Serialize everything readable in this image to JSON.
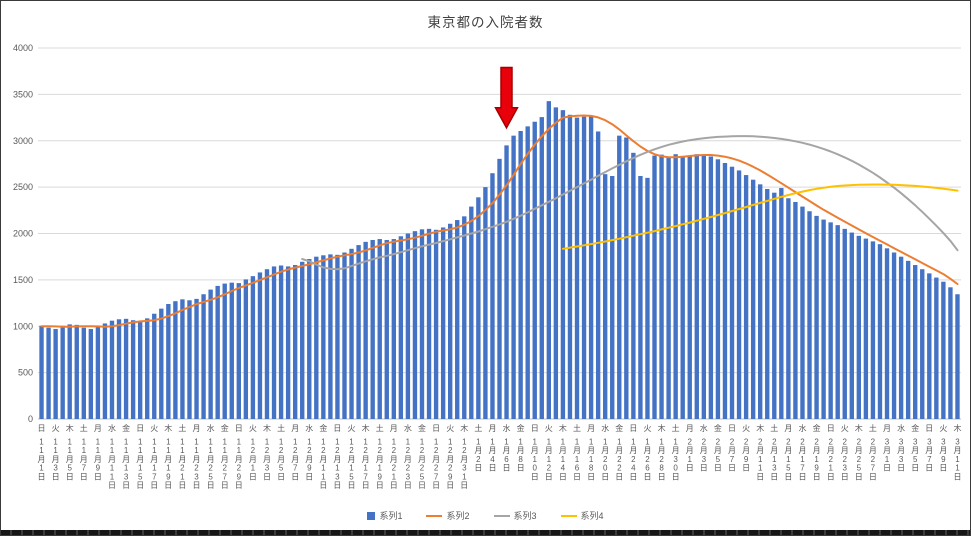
{
  "chart_data": {
    "type": "bar+line",
    "title": "東京都の入院者数",
    "grid": true,
    "legend_position": "bottom",
    "y_axis": {
      "min": 0,
      "max": 4000,
      "step": 500,
      "tick_labels": [
        "0",
        "500",
        "1000",
        "1500",
        "2000",
        "2500",
        "3000",
        "3500",
        "4000"
      ]
    },
    "x_axis": {
      "tick_every_days": 2,
      "ticks": [
        {
          "w": "日",
          "d": "11月1日"
        },
        {
          "w": "火",
          "d": "11月3日"
        },
        {
          "w": "木",
          "d": "11月5日"
        },
        {
          "w": "土",
          "d": "11月7日"
        },
        {
          "w": "月",
          "d": "11月9日"
        },
        {
          "w": "水",
          "d": "11月11日"
        },
        {
          "w": "金",
          "d": "11月13日"
        },
        {
          "w": "日",
          "d": "11月15日"
        },
        {
          "w": "火",
          "d": "11月17日"
        },
        {
          "w": "木",
          "d": "11月19日"
        },
        {
          "w": "土",
          "d": "11月21日"
        },
        {
          "w": "月",
          "d": "11月23日"
        },
        {
          "w": "水",
          "d": "11月25日"
        },
        {
          "w": "金",
          "d": "11月27日"
        },
        {
          "w": "日",
          "d": "11月29日"
        },
        {
          "w": "火",
          "d": "12月1日"
        },
        {
          "w": "木",
          "d": "12月3日"
        },
        {
          "w": "土",
          "d": "12月5日"
        },
        {
          "w": "月",
          "d": "12月7日"
        },
        {
          "w": "水",
          "d": "12月9日"
        },
        {
          "w": "金",
          "d": "12月11日"
        },
        {
          "w": "日",
          "d": "12月13日"
        },
        {
          "w": "火",
          "d": "12月15日"
        },
        {
          "w": "木",
          "d": "12月17日"
        },
        {
          "w": "土",
          "d": "12月19日"
        },
        {
          "w": "月",
          "d": "12月21日"
        },
        {
          "w": "水",
          "d": "12月23日"
        },
        {
          "w": "金",
          "d": "12月25日"
        },
        {
          "w": "日",
          "d": "12月27日"
        },
        {
          "w": "火",
          "d": "12月29日"
        },
        {
          "w": "木",
          "d": "12月31日"
        },
        {
          "w": "土",
          "d": "1月2日"
        },
        {
          "w": "月",
          "d": "1月4日"
        },
        {
          "w": "水",
          "d": "1月6日"
        },
        {
          "w": "金",
          "d": "1月8日"
        },
        {
          "w": "日",
          "d": "1月10日"
        },
        {
          "w": "火",
          "d": "1月12日"
        },
        {
          "w": "木",
          "d": "1月14日"
        },
        {
          "w": "土",
          "d": "1月16日"
        },
        {
          "w": "月",
          "d": "1月18日"
        },
        {
          "w": "水",
          "d": "1月20日"
        },
        {
          "w": "金",
          "d": "1月22日"
        },
        {
          "w": "日",
          "d": "1月24日"
        },
        {
          "w": "火",
          "d": "1月26日"
        },
        {
          "w": "木",
          "d": "1月28日"
        },
        {
          "w": "土",
          "d": "1月30日"
        },
        {
          "w": "月",
          "d": "2月1日"
        },
        {
          "w": "水",
          "d": "2月3日"
        },
        {
          "w": "金",
          "d": "2月5日"
        },
        {
          "w": "日",
          "d": "2月7日"
        },
        {
          "w": "火",
          "d": "2月9日"
        },
        {
          "w": "木",
          "d": "2月11日"
        },
        {
          "w": "土",
          "d": "2月13日"
        },
        {
          "w": "月",
          "d": "2月15日"
        },
        {
          "w": "水",
          "d": "2月17日"
        },
        {
          "w": "金",
          "d": "2月19日"
        },
        {
          "w": "日",
          "d": "2月21日"
        },
        {
          "w": "火",
          "d": "2月23日"
        },
        {
          "w": "木",
          "d": "2月25日"
        },
        {
          "w": "土",
          "d": "2月27日"
        },
        {
          "w": "月",
          "d": "3月1日"
        },
        {
          "w": "水",
          "d": "3月3日"
        },
        {
          "w": "金",
          "d": "3月5日"
        },
        {
          "w": "日",
          "d": "3月7日"
        },
        {
          "w": "火",
          "d": "3月9日"
        },
        {
          "w": "木",
          "d": "3月11日"
        }
      ]
    },
    "series": [
      {
        "name": "系列1",
        "type": "bar",
        "color": "#4472C4",
        "values": [
          1005,
          985,
          970,
          1005,
          1020,
          1015,
          985,
          970,
          995,
          1030,
          1060,
          1075,
          1080,
          1065,
          1050,
          1085,
          1135,
          1190,
          1240,
          1270,
          1290,
          1280,
          1295,
          1345,
          1395,
          1435,
          1460,
          1470,
          1465,
          1505,
          1540,
          1580,
          1615,
          1645,
          1655,
          1645,
          1660,
          1695,
          1725,
          1750,
          1765,
          1775,
          1770,
          1795,
          1835,
          1875,
          1910,
          1930,
          1940,
          1930,
          1940,
          1970,
          2000,
          2025,
          2045,
          2050,
          2040,
          2065,
          2105,
          2145,
          2185,
          2290,
          2390,
          2500,
          2650,
          2805,
          2950,
          3055,
          3105,
          3155,
          3205,
          3255,
          3427,
          3360,
          3330,
          3280,
          3250,
          3260,
          3270,
          3100,
          2640,
          2620,
          3055,
          3035,
          2870,
          2620,
          2600,
          2840,
          2850,
          2830,
          2855,
          2830,
          2840,
          2855,
          2850,
          2830,
          2800,
          2760,
          2720,
          2680,
          2630,
          2580,
          2530,
          2480,
          2440,
          2490,
          2380,
          2340,
          2290,
          2240,
          2190,
          2150,
          2120,
          2090,
          2050,
          2010,
          1975,
          1945,
          1915,
          1885,
          1840,
          1795,
          1750,
          1705,
          1660,
          1615,
          1570,
          1525,
          1480,
          1420,
          1345
        ]
      },
      {
        "name": "系列2",
        "type": "line",
        "color": "#ED7D31",
        "start_index": 0,
        "values": [
          1000,
          1000,
          998,
          995,
          995,
          998,
          1000,
          1000,
          998,
          995,
          1000,
          1012,
          1028,
          1042,
          1052,
          1058,
          1065,
          1082,
          1108,
          1140,
          1175,
          1208,
          1238,
          1262,
          1285,
          1312,
          1345,
          1380,
          1412,
          1440,
          1468,
          1498,
          1528,
          1558,
          1588,
          1612,
          1632,
          1650,
          1668,
          1688,
          1710,
          1732,
          1750,
          1765,
          1778,
          1795,
          1818,
          1845,
          1872,
          1895,
          1912,
          1925,
          1938,
          1955,
          1975,
          1998,
          2018,
          2032,
          2045,
          2065,
          2095,
          2135,
          2188,
          2252,
          2328,
          2418,
          2520,
          2632,
          2748,
          2858,
          2958,
          3048,
          3128,
          3195,
          3248,
          3262,
          3270,
          3272,
          3268,
          3252,
          3222,
          3178,
          3122,
          3058,
          2995,
          2938,
          2890,
          2855,
          2832,
          2822,
          2822,
          2828,
          2836,
          2842,
          2846,
          2846,
          2840,
          2828,
          2810,
          2786,
          2756,
          2720,
          2680,
          2636,
          2590,
          2542,
          2494,
          2446,
          2398,
          2350,
          2302,
          2256,
          2212,
          2170,
          2128,
          2086,
          2044,
          2002,
          1962,
          1922,
          1882,
          1842,
          1802,
          1762,
          1722,
          1682,
          1642,
          1602,
          1562,
          1512,
          1455
        ]
      },
      {
        "name": "系列3",
        "type": "line",
        "color": "#A5A5A5",
        "start_index": 37,
        "values": [
          1725,
          1700,
          1665,
          1635,
          1618,
          1615,
          1625,
          1648,
          1675,
          1700,
          1722,
          1742,
          1760,
          1778,
          1798,
          1820,
          1842,
          1862,
          1880,
          1898,
          1918,
          1938,
          1958,
          1978,
          2000,
          2022,
          2046,
          2072,
          2098,
          2126,
          2158,
          2192,
          2228,
          2266,
          2304,
          2342,
          2380,
          2420,
          2460,
          2500,
          2540,
          2580,
          2622,
          2662,
          2702,
          2740,
          2778,
          2814,
          2848,
          2880,
          2908,
          2934,
          2956,
          2975,
          2992,
          3006,
          3018,
          3027,
          3035,
          3041,
          3045,
          3048,
          3050,
          3050,
          3048,
          3044,
          3038,
          3030,
          3020,
          3008,
          2994,
          2978,
          2958,
          2936,
          2912,
          2884,
          2854,
          2820,
          2784,
          2744,
          2700,
          2654,
          2604,
          2550,
          2494,
          2434,
          2370,
          2304,
          2234,
          2160,
          2084,
          2004,
          1920,
          1820
        ]
      },
      {
        "name": "系列4",
        "type": "line",
        "color": "#FFC000",
        "start_index": 74,
        "values": [
          1835,
          1848,
          1860,
          1873,
          1886,
          1900,
          1914,
          1929,
          1944,
          1960,
          1976,
          1992,
          2009,
          2026,
          2044,
          2062,
          2080,
          2099,
          2118,
          2138,
          2158,
          2178,
          2199,
          2220,
          2242,
          2264,
          2286,
          2308,
          2330,
          2352,
          2374,
          2395,
          2415,
          2434,
          2452,
          2468,
          2482,
          2494,
          2504,
          2512,
          2518,
          2522,
          2525,
          2527,
          2528,
          2528,
          2527,
          2525,
          2522,
          2518,
          2513,
          2507,
          2500,
          2492,
          2483,
          2473,
          2462
        ]
      }
    ],
    "annotation": {
      "shape": "down-arrow",
      "color": "#e8000b",
      "border_color": "#a50000",
      "day_index": 66,
      "tip_value": 3140,
      "tail_value": 3790
    }
  }
}
